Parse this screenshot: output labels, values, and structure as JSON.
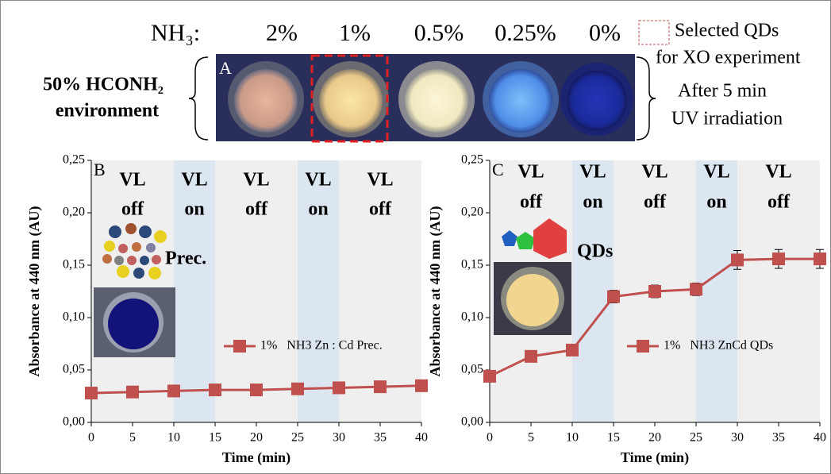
{
  "header": {
    "label": "NH₃:",
    "concentrations": [
      "2%",
      "1%",
      "0.5%",
      "0.25%",
      "0%"
    ],
    "legend": [
      "Selected QDs",
      "for XO experiment"
    ],
    "panel": "A",
    "environment": [
      "50% HCONH₂",
      "environment"
    ],
    "note": [
      "After 5 min",
      "UV irradiation"
    ]
  },
  "chart_data": [
    {
      "type": "line",
      "panel": "B",
      "annotation": "Prec.",
      "x": [
        0,
        5,
        10,
        15,
        20,
        25,
        30,
        35,
        40
      ],
      "series": [
        {
          "name": "1%   NH3 Zn : Cd Prec.",
          "color": "#c0504d",
          "values": [
            0.028,
            0.029,
            0.03,
            0.031,
            0.031,
            0.032,
            0.033,
            0.034,
            0.035
          ]
        }
      ],
      "xlim": [
        0,
        40
      ],
      "xticks": [
        0,
        5,
        10,
        15,
        20,
        25,
        30,
        35,
        40
      ],
      "ylim": [
        0,
        0.25
      ],
      "yticks": [
        {
          "value": 0,
          "label": "0,00"
        },
        {
          "value": 0.05,
          "label": "0,05"
        },
        {
          "value": 0.1,
          "label": "0,10"
        },
        {
          "value": 0.15,
          "label": "0,15"
        },
        {
          "value": 0.2,
          "label": "0,20"
        },
        {
          "value": 0.25,
          "label": "0,25"
        }
      ],
      "xlabel": "Time (min)",
      "ylabel": "Absorbance at 440 nm  (AU)",
      "regions": [
        {
          "start": 0,
          "end": 10,
          "label": [
            "VL",
            "off"
          ],
          "color": "#efefef"
        },
        {
          "start": 10,
          "end": 15,
          "label": [
            "VL",
            "on"
          ],
          "color": "#dce6f1"
        },
        {
          "start": 15,
          "end": 25,
          "label": [
            "VL",
            "off"
          ],
          "color": "#efefef"
        },
        {
          "start": 25,
          "end": 30,
          "label": [
            "VL",
            "on"
          ],
          "color": "#dce6f1"
        },
        {
          "start": 30,
          "end": 40,
          "label": [
            "VL",
            "off"
          ],
          "color": "#efefef"
        }
      ]
    },
    {
      "type": "line",
      "panel": "C",
      "annotation": "QDs",
      "x": [
        0,
        5,
        10,
        15,
        20,
        25,
        30,
        35,
        40
      ],
      "series": [
        {
          "name": "1%   NH3 ZnCd QDs",
          "color": "#c0504d",
          "values": [
            0.044,
            0.063,
            0.069,
            0.12,
            0.125,
            0.127,
            0.155,
            0.156,
            0.156
          ],
          "errors": [
            0.002,
            0.003,
            0.003,
            0.006,
            0.006,
            0.006,
            0.009,
            0.009,
            0.009
          ]
        }
      ],
      "xlim": [
        0,
        40
      ],
      "xticks": [
        0,
        5,
        10,
        15,
        20,
        25,
        30,
        35,
        40
      ],
      "ylim": [
        0,
        0.25
      ],
      "yticks": [
        {
          "value": 0,
          "label": "0,00"
        },
        {
          "value": 0.05,
          "label": "0,05"
        },
        {
          "value": 0.1,
          "label": "0,10"
        },
        {
          "value": 0.15,
          "label": "0,15"
        },
        {
          "value": 0.2,
          "label": "0,20"
        },
        {
          "value": 0.25,
          "label": "0,25"
        }
      ],
      "xlabel": "Time (min)",
      "ylabel": "Absorbance at 440 nm  (AU)",
      "regions": [
        {
          "start": 0,
          "end": 10,
          "label": [
            "VL",
            "off"
          ],
          "color": "#efefef"
        },
        {
          "start": 10,
          "end": 15,
          "label": [
            "VL",
            "on"
          ],
          "color": "#dce6f1"
        },
        {
          "start": 15,
          "end": 25,
          "label": [
            "VL",
            "off"
          ],
          "color": "#efefef"
        },
        {
          "start": 25,
          "end": 30,
          "label": [
            "VL",
            "on"
          ],
          "color": "#dce6f1"
        },
        {
          "start": 30,
          "end": 40,
          "label": [
            "VL",
            "off"
          ],
          "color": "#efefef"
        }
      ]
    }
  ]
}
